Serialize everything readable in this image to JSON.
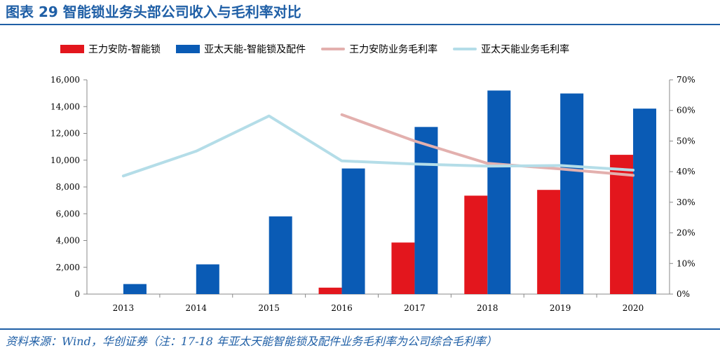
{
  "header": {
    "title": "图表 29   智能锁业务头部公司收入与毛利率对比"
  },
  "footer": {
    "source": "资料来源：Wind，华创证券（注：17-18 年亚太天能智能锁及配件业务毛利率为公司综合毛利率）"
  },
  "colors": {
    "title_blue": "#1f5fa6",
    "bar_red": "#e3161d",
    "bar_blue": "#0a5bb5",
    "line_pink": "#e3b0ae",
    "line_lightblue": "#b4dde8"
  },
  "chart_data": {
    "type": "bar",
    "categories": [
      "2013",
      "2014",
      "2015",
      "2016",
      "2017",
      "2018",
      "2019",
      "2020"
    ],
    "y_left_ticks": [
      "0",
      "2,000",
      "4,000",
      "6,000",
      "8,000",
      "10,000",
      "12,000",
      "14,000",
      "16,000"
    ],
    "y_right_ticks": [
      "0%",
      "10%",
      "20%",
      "30%",
      "40%",
      "50%",
      "60%",
      "70%"
    ],
    "ylim_left": [
      0,
      16000
    ],
    "ylim_right": [
      0,
      70
    ],
    "legend_position": "top",
    "bar_series": [
      {
        "name": "王力安防-智能锁",
        "color": "#e3161d",
        "values": [
          null,
          null,
          null,
          480,
          3850,
          7350,
          7780,
          10400
        ]
      },
      {
        "name": "亚太天能-智能锁及配件",
        "color": "#0a5bb5",
        "values": [
          750,
          2220,
          5800,
          9380,
          12480,
          15200,
          14980,
          13850
        ]
      }
    ],
    "line_series": [
      {
        "name": "王力安防业务毛利率",
        "color": "#e3b0ae",
        "values": [
          null,
          null,
          null,
          58.6,
          50.0,
          42.7,
          40.9,
          38.8
        ]
      },
      {
        "name": "亚太天能业务毛利率",
        "color": "#b4dde8",
        "values": [
          38.6,
          46.7,
          58.2,
          43.5,
          42.5,
          41.8,
          42.0,
          40.5
        ]
      }
    ]
  }
}
